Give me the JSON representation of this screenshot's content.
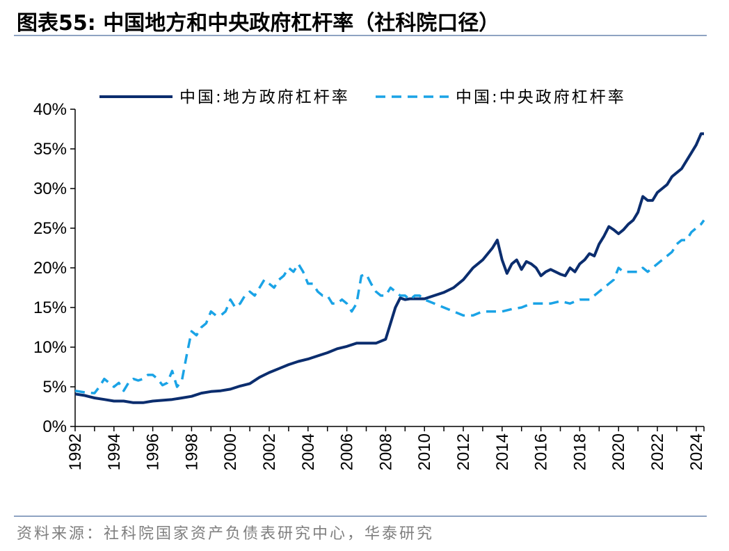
{
  "header": {
    "title": "图表55:   中国地方和中央政府杠杆率（社科院口径）"
  },
  "footer": {
    "source": "资料来源：社科院国家资产负债表研究中心，华泰研究"
  },
  "colors": {
    "local": "#0b2d6e",
    "central": "#1aa3e6",
    "rule": "#8ea3c2"
  },
  "chart_data": {
    "type": "line",
    "title": "",
    "xlabel": "",
    "ylabel": "",
    "xlim": [
      1992,
      2024.4
    ],
    "ylim": [
      0,
      40
    ],
    "y_ticks": [
      "0%",
      "5%",
      "10%",
      "15%",
      "20%",
      "25%",
      "30%",
      "35%",
      "40%"
    ],
    "x_ticks": [
      "1992",
      "1994",
      "1996",
      "1998",
      "2000",
      "2002",
      "2004",
      "2006",
      "2008",
      "2010",
      "2012",
      "2014",
      "2016",
      "2018",
      "2020",
      "2022",
      "2024"
    ],
    "legend_position": "top",
    "grid": false,
    "series": [
      {
        "name": "中国:地方政府杠杆率",
        "style": "solid",
        "x": [
          1992.0,
          1992.5,
          1993.0,
          1993.5,
          1994.0,
          1994.5,
          1995.0,
          1995.5,
          1996.0,
          1996.5,
          1997.0,
          1997.5,
          1998.0,
          1998.5,
          1999.0,
          1999.5,
          2000.0,
          2000.5,
          2001.0,
          2001.5,
          2002.0,
          2002.5,
          2003.0,
          2003.5,
          2004.0,
          2004.5,
          2005.0,
          2005.5,
          2006.0,
          2006.5,
          2007.0,
          2007.5,
          2008.0,
          2008.25,
          2008.5,
          2008.75,
          2009.0,
          2009.25,
          2009.5,
          2010.0,
          2010.5,
          2011.0,
          2011.5,
          2012.0,
          2012.5,
          2013.0,
          2013.5,
          2013.75,
          2014.0,
          2014.25,
          2014.5,
          2014.75,
          2015.0,
          2015.25,
          2015.5,
          2015.75,
          2016.0,
          2016.25,
          2016.5,
          2016.75,
          2017.0,
          2017.25,
          2017.5,
          2017.75,
          2018.0,
          2018.25,
          2018.5,
          2018.75,
          2019.0,
          2019.25,
          2019.5,
          2019.75,
          2020.0,
          2020.25,
          2020.5,
          2020.75,
          2021.0,
          2021.25,
          2021.5,
          2021.75,
          2022.0,
          2022.25,
          2022.5,
          2022.75,
          2023.0,
          2023.25,
          2023.5,
          2023.75,
          2024.0,
          2024.25,
          2024.4
        ],
        "values": [
          4.1,
          3.9,
          3.6,
          3.4,
          3.2,
          3.2,
          3.0,
          3.0,
          3.2,
          3.3,
          3.4,
          3.6,
          3.8,
          4.2,
          4.4,
          4.5,
          4.7,
          5.1,
          5.4,
          6.2,
          6.8,
          7.3,
          7.8,
          8.2,
          8.5,
          8.9,
          9.3,
          9.8,
          10.1,
          10.5,
          10.5,
          10.5,
          11.0,
          13.0,
          15.0,
          16.2,
          16.0,
          16.1,
          16.1,
          16.1,
          16.5,
          16.9,
          17.5,
          18.5,
          20.0,
          21.0,
          22.5,
          23.5,
          21.0,
          19.3,
          20.5,
          21.0,
          19.8,
          20.8,
          20.5,
          20.0,
          19.0,
          19.5,
          19.8,
          19.5,
          19.2,
          19.0,
          20.0,
          19.5,
          20.5,
          21.0,
          21.8,
          21.5,
          23.0,
          24.0,
          25.2,
          24.8,
          24.3,
          24.8,
          25.5,
          26.0,
          27.0,
          29.0,
          28.5,
          28.5,
          29.5,
          30.0,
          30.5,
          31.5,
          32.0,
          32.5,
          33.5,
          34.5,
          35.5,
          36.9,
          36.9
        ]
      },
      {
        "name": "中国:中央政府杠杆率",
        "style": "dashed",
        "x": [
          1992.0,
          1992.5,
          1993.0,
          1993.25,
          1993.5,
          1994.0,
          1994.25,
          1994.5,
          1994.75,
          1995.0,
          1995.25,
          1995.5,
          1995.75,
          1996.0,
          1996.25,
          1996.5,
          1996.75,
          1997.0,
          1997.25,
          1997.5,
          1997.75,
          1998.0,
          1998.25,
          1998.5,
          1998.75,
          1999.0,
          1999.25,
          1999.5,
          1999.75,
          2000.0,
          2000.25,
          2000.5,
          2000.75,
          2001.0,
          2001.25,
          2001.5,
          2001.75,
          2002.0,
          2002.25,
          2002.5,
          2002.75,
          2003.0,
          2003.25,
          2003.5,
          2003.75,
          2004.0,
          2004.25,
          2004.5,
          2004.75,
          2005.0,
          2005.25,
          2005.5,
          2005.75,
          2006.0,
          2006.25,
          2006.5,
          2006.75,
          2007.0,
          2007.25,
          2007.5,
          2007.75,
          2008.0,
          2008.25,
          2008.5,
          2008.75,
          2009.0,
          2009.25,
          2009.5,
          2009.75,
          2010.0,
          2010.5,
          2011.0,
          2011.5,
          2012.0,
          2012.5,
          2013.0,
          2013.5,
          2014.0,
          2014.5,
          2015.0,
          2015.5,
          2016.0,
          2016.5,
          2017.0,
          2017.5,
          2018.0,
          2018.5,
          2019.0,
          2019.25,
          2019.5,
          2019.75,
          2020.0,
          2020.25,
          2020.5,
          2020.75,
          2021.0,
          2021.25,
          2021.5,
          2021.75,
          2022.0,
          2022.25,
          2022.5,
          2022.75,
          2023.0,
          2023.25,
          2023.5,
          2023.75,
          2024.0,
          2024.25,
          2024.4
        ],
        "values": [
          4.5,
          4.3,
          4.2,
          5.0,
          6.0,
          5.0,
          5.5,
          4.5,
          5.5,
          6.0,
          5.8,
          6.0,
          6.5,
          6.5,
          6.0,
          5.2,
          5.5,
          7.0,
          5.0,
          5.8,
          9.0,
          12.0,
          11.5,
          12.5,
          13.0,
          14.5,
          14.0,
          14.0,
          14.5,
          16.0,
          15.0,
          15.5,
          16.5,
          17.0,
          16.5,
          17.5,
          18.5,
          18.0,
          17.5,
          18.5,
          19.0,
          20.0,
          19.5,
          20.5,
          19.5,
          18.0,
          18.0,
          17.0,
          16.5,
          16.5,
          15.5,
          15.5,
          16.0,
          15.5,
          14.5,
          15.5,
          19.0,
          19.2,
          18.0,
          17.0,
          16.5,
          16.5,
          17.5,
          17.0,
          16.5,
          16.5,
          16.0,
          16.5,
          16.5,
          16.0,
          15.5,
          15.0,
          14.5,
          14.0,
          14.0,
          14.5,
          14.5,
          14.5,
          14.8,
          15.0,
          15.5,
          15.5,
          15.5,
          15.8,
          15.5,
          16.0,
          16.0,
          17.0,
          17.5,
          18.0,
          18.5,
          20.0,
          19.5,
          19.5,
          19.5,
          19.5,
          20.0,
          19.5,
          20.0,
          20.5,
          21.0,
          21.5,
          22.0,
          23.0,
          23.5,
          23.5,
          24.5,
          25.0,
          25.5,
          26.0
        ]
      }
    ]
  }
}
